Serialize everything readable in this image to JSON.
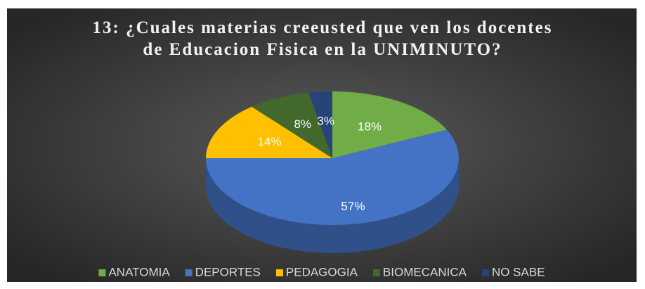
{
  "chart_data": {
    "type": "pie",
    "title": "13: ¿Cuales materias creeusted que ven los docentes de Educacion Fisica en la UNIMINUTO?",
    "categories": [
      "ANATOMIA",
      "DEPORTES",
      "PEDAGOGIA",
      "BIOMECANICA",
      "NO SABE"
    ],
    "values": [
      18,
      57,
      14,
      8,
      3
    ],
    "value_labels": [
      "18%",
      "57%",
      "14%",
      "8%",
      "3%"
    ],
    "colors": [
      "#70ad47",
      "#4472c4",
      "#ffc000",
      "#43682b",
      "#264478"
    ],
    "legend": "bottom"
  }
}
